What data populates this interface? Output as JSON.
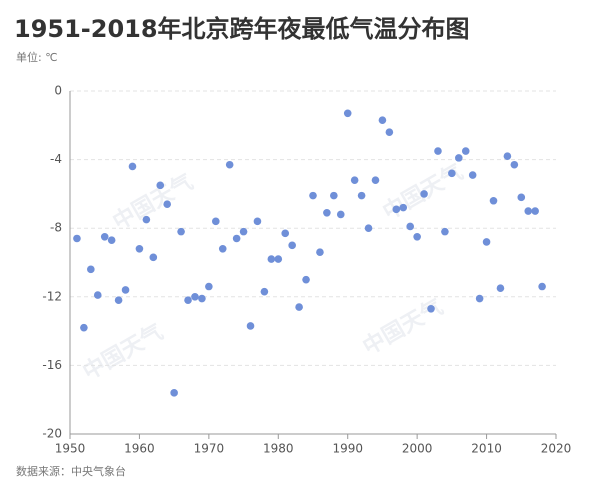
{
  "chart_data": {
    "type": "scatter",
    "title": "1951-2018年北京跨年夜最低气温分布图",
    "subtitle": "单位: ℃",
    "source": "数据来源：中央气象台",
    "watermark": "中国天气",
    "color": "#6f8fd8",
    "grid": true,
    "xlim": [
      1950,
      2020
    ],
    "xticks": [
      1950,
      1960,
      1970,
      1980,
      1990,
      2000,
      2010,
      2020
    ],
    "ylim": [
      -20,
      0
    ],
    "yticks": [
      0,
      -4,
      -8,
      -12,
      -16,
      -20
    ],
    "x": [
      1951,
      1952,
      1953,
      1954,
      1955,
      1956,
      1957,
      1958,
      1959,
      1960,
      1961,
      1962,
      1963,
      1964,
      1965,
      1966,
      1967,
      1968,
      1969,
      1970,
      1971,
      1972,
      1973,
      1974,
      1975,
      1976,
      1977,
      1978,
      1979,
      1980,
      1981,
      1982,
      1983,
      1984,
      1985,
      1986,
      1987,
      1988,
      1989,
      1990,
      1991,
      1992,
      1993,
      1994,
      1995,
      1996,
      1997,
      1998,
      1999,
      2000,
      2001,
      2002,
      2003,
      2004,
      2005,
      2006,
      2007,
      2008,
      2009,
      2010,
      2011,
      2012,
      2013,
      2014,
      2015,
      2016,
      2017,
      2018
    ],
    "values": [
      -8.6,
      -13.8,
      -10.4,
      -11.9,
      -8.5,
      -8.7,
      -12.2,
      -11.6,
      -4.4,
      -9.2,
      -7.5,
      -9.7,
      -5.5,
      -6.6,
      -17.6,
      -8.2,
      -12.2,
      -12.0,
      -12.1,
      -11.4,
      -7.6,
      -9.2,
      -4.3,
      -8.6,
      -8.2,
      -13.7,
      -7.6,
      -11.7,
      -9.8,
      -9.8,
      -8.3,
      -9.0,
      -12.6,
      -11.0,
      -6.1,
      -9.4,
      -7.1,
      -6.1,
      -7.2,
      -1.3,
      -5.2,
      -6.1,
      -8.0,
      -5.2,
      -1.7,
      -2.4,
      -6.9,
      -6.8,
      -7.9,
      -8.5,
      -6.0,
      -12.7,
      -3.5,
      -8.2,
      -4.8,
      -3.9,
      -3.5,
      -4.9,
      -12.1,
      -8.8,
      -6.4,
      -11.5,
      -3.8,
      -4.3,
      -6.2,
      -7.0,
      -7.0,
      -11.4
    ]
  }
}
